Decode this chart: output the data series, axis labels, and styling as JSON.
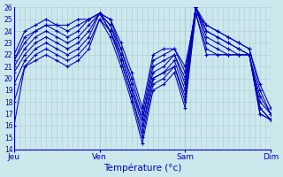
{
  "xlabel": "Température (°c)",
  "bg_color": "#cce8ed",
  "grid_color": "#aacdd4",
  "line_color": "#0000bb",
  "marker": "+",
  "ylim": [
    14,
    26
  ],
  "yticks": [
    14,
    15,
    16,
    17,
    18,
    19,
    20,
    21,
    22,
    23,
    24,
    25,
    26
  ],
  "day_positions": [
    0,
    8,
    16,
    24
  ],
  "day_labels": [
    "Jeu",
    "Ven",
    "Sam",
    "Dim"
  ],
  "n_points": 25,
  "series": [
    [
      16.0,
      21.0,
      21.5,
      22.0,
      21.5,
      21.0,
      21.5,
      22.5,
      25.0,
      23.5,
      21.0,
      18.0,
      14.5,
      19.0,
      19.5,
      20.5,
      17.5,
      25.5,
      22.0,
      22.0,
      22.0,
      22.0,
      22.0,
      17.0,
      16.5
    ],
    [
      18.0,
      21.0,
      22.0,
      22.5,
      22.0,
      21.5,
      22.0,
      23.0,
      25.0,
      24.0,
      21.5,
      18.5,
      15.0,
      19.5,
      20.0,
      21.0,
      18.0,
      25.5,
      22.5,
      22.0,
      22.0,
      22.0,
      22.0,
      17.0,
      16.5
    ],
    [
      19.5,
      21.5,
      22.5,
      23.0,
      22.5,
      22.0,
      22.5,
      23.5,
      25.5,
      24.0,
      21.5,
      18.5,
      15.5,
      20.0,
      20.5,
      21.0,
      18.5,
      26.0,
      23.0,
      22.5,
      22.0,
      22.0,
      22.0,
      17.5,
      16.5
    ],
    [
      20.5,
      22.0,
      23.0,
      23.5,
      23.0,
      22.5,
      23.0,
      24.0,
      25.5,
      24.0,
      22.0,
      19.0,
      16.0,
      20.0,
      20.5,
      21.5,
      19.0,
      26.0,
      23.5,
      23.0,
      22.5,
      22.0,
      22.0,
      17.5,
      16.5
    ],
    [
      21.0,
      22.5,
      23.5,
      24.0,
      23.5,
      23.0,
      23.5,
      24.5,
      25.5,
      24.5,
      22.0,
      19.0,
      16.5,
      20.5,
      21.0,
      22.0,
      19.5,
      26.0,
      24.0,
      23.5,
      23.0,
      22.5,
      22.0,
      18.0,
      17.0
    ],
    [
      21.5,
      23.0,
      24.0,
      24.5,
      24.0,
      23.5,
      24.0,
      25.0,
      25.5,
      24.5,
      22.5,
      19.5,
      16.5,
      21.0,
      21.5,
      22.0,
      20.0,
      26.0,
      24.0,
      23.5,
      23.0,
      22.5,
      22.0,
      18.5,
      17.0
    ],
    [
      21.5,
      23.5,
      24.0,
      24.5,
      24.5,
      24.0,
      24.5,
      25.0,
      25.5,
      25.0,
      22.5,
      20.0,
      17.0,
      21.5,
      22.0,
      22.5,
      20.5,
      26.0,
      24.5,
      24.0,
      23.5,
      23.0,
      22.5,
      19.0,
      17.0
    ],
    [
      22.0,
      24.0,
      24.5,
      25.0,
      24.5,
      24.5,
      25.0,
      25.0,
      25.5,
      25.0,
      23.0,
      20.5,
      17.5,
      22.0,
      22.5,
      22.5,
      21.0,
      25.5,
      24.5,
      24.0,
      23.5,
      23.0,
      22.5,
      19.5,
      17.5
    ]
  ]
}
